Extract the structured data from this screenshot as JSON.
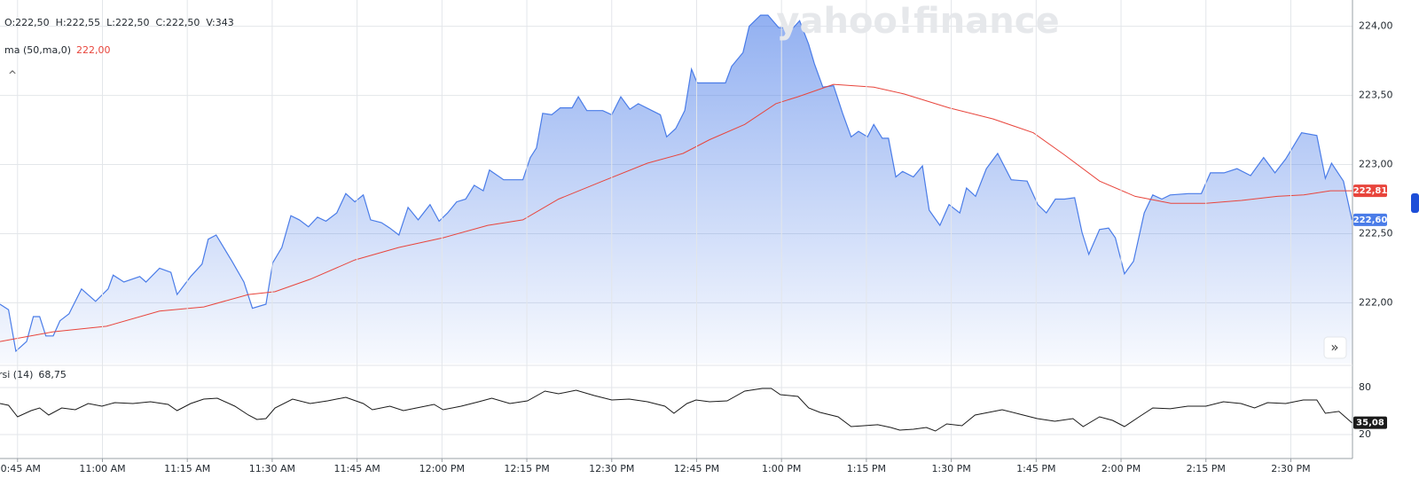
{
  "chart_data": [
    {
      "type": "area",
      "ohlcv": [
        "O:222,50",
        "H:222,55",
        "L:222,50",
        "C:222,50",
        "V:343"
      ],
      "watermark": "yahoo!finance",
      "xlim": [
        641.9,
        880.9
      ],
      "ylim": [
        221.56,
        224.19
      ],
      "yticks": [
        {
          "value": 222,
          "label": "222,00"
        },
        {
          "value": 222.5,
          "label": "222,50"
        },
        {
          "value": 223,
          "label": "223,00"
        },
        {
          "value": 223.5,
          "label": "223,50"
        },
        {
          "value": 224,
          "label": "224,00"
        }
      ],
      "grid": true,
      "series": [
        {
          "kind": "area",
          "color": "#4a7ce8",
          "x": [
            641.9,
            643.4,
            644.7,
            646.6,
            647.8,
            648.9,
            650.0,
            651.3,
            652.5,
            654.1,
            656.3,
            658.8,
            661.0,
            661.9,
            663.8,
            666.6,
            667.7,
            670.1,
            672.1,
            673.2,
            675.6,
            677.6,
            678.7,
            680.1,
            682.9,
            685.0,
            686.5,
            688.9,
            690.1,
            691.7,
            693.3,
            694.8,
            696.4,
            698.0,
            699.5,
            701.4,
            703.0,
            704.6,
            706.1,
            707.4,
            709.3,
            710.8,
            712.4,
            714.0,
            715.8,
            717.9,
            719.5,
            721.0,
            722.6,
            724.2,
            725.7,
            727.3,
            728.4,
            730.9,
            734.3,
            735.6,
            736.7,
            737.8,
            739.4,
            740.9,
            743.0,
            744.1,
            745.6,
            748.4,
            750.0,
            751.6,
            753.2,
            754.7,
            757.1,
            758.6,
            759.7,
            761.3,
            762.9,
            764.1,
            765.1,
            767.3,
            770.1,
            771.2,
            773.2,
            774.3,
            776.3,
            777.6,
            779.5,
            782.1,
            783.2,
            784.8,
            785.8,
            787.3,
            789.2,
            790.8,
            792.3,
            793.6,
            795.2,
            796.3,
            797.8,
            798.9,
            800.2,
            801.4,
            803.3,
            804.9,
            806.1,
            808.0,
            809.6,
            811.5,
            812.7,
            814.3,
            816.2,
            818.2,
            820.6,
            823.4,
            825.3,
            826.8,
            828.4,
            830.0,
            831.8,
            833.1,
            834.3,
            836.2,
            837.8,
            839.0,
            840.6,
            842.2,
            844.1,
            845.6,
            847.2,
            848.7,
            851.9,
            854.2,
            855.8,
            858.2,
            860.5,
            862.9,
            865.2,
            867.2,
            869.1,
            871.9,
            874.6,
            876.1,
            877.2,
            879.3,
            880.8
          ],
          "values": [
            221.99,
            221.95,
            221.65,
            221.72,
            221.9,
            221.9,
            221.76,
            221.76,
            221.87,
            221.92,
            222.1,
            222.01,
            222.1,
            222.2,
            222.15,
            222.19,
            222.15,
            222.25,
            222.22,
            222.06,
            222.19,
            222.28,
            222.46,
            222.49,
            222.3,
            222.15,
            221.96,
            221.99,
            222.29,
            222.4,
            222.63,
            222.6,
            222.55,
            222.62,
            222.59,
            222.65,
            222.79,
            222.73,
            222.78,
            222.6,
            222.58,
            222.54,
            222.49,
            222.69,
            222.6,
            222.71,
            222.59,
            222.65,
            222.73,
            222.75,
            222.85,
            222.81,
            222.96,
            222.89,
            222.89,
            223.05,
            223.12,
            223.37,
            223.36,
            223.41,
            223.41,
            223.49,
            223.39,
            223.39,
            223.36,
            223.49,
            223.4,
            223.44,
            223.39,
            223.36,
            223.2,
            223.26,
            223.39,
            223.69,
            223.59,
            223.59,
            223.59,
            223.71,
            223.81,
            224.0,
            224.08,
            224.08,
            223.99,
            223.99,
            224.04,
            223.87,
            223.73,
            223.56,
            223.57,
            223.37,
            223.2,
            223.24,
            223.2,
            223.29,
            223.19,
            223.19,
            222.91,
            222.95,
            222.91,
            222.99,
            222.67,
            222.56,
            222.71,
            222.65,
            222.83,
            222.77,
            222.97,
            223.08,
            222.89,
            222.88,
            222.71,
            222.65,
            222.75,
            222.75,
            222.76,
            222.51,
            222.35,
            222.53,
            222.54,
            222.47,
            222.21,
            222.3,
            222.65,
            222.78,
            222.75,
            222.78,
            222.79,
            222.79,
            222.94,
            222.94,
            222.97,
            222.92,
            223.05,
            222.94,
            223.04,
            223.23,
            223.21,
            222.9,
            223.01,
            222.88,
            222.6
          ],
          "last_label": {
            "value": 222.6,
            "label": "222,60"
          }
        },
        {
          "kind": "line",
          "name": "ma (50,ma,0)",
          "legend_value": "222,00",
          "color": "#e8453c",
          "x": [
            641.9,
            651.3,
            660.7,
            670.1,
            677.9,
            685.8,
            690.5,
            696.7,
            704.6,
            712.4,
            720.2,
            728.1,
            734.3,
            740.6,
            748.4,
            756.3,
            762.6,
            767.3,
            773.5,
            779.0,
            782.9,
            789.2,
            796.3,
            801.7,
            809.6,
            817.4,
            824.5,
            830.0,
            836.2,
            842.5,
            848.8,
            855.0,
            861.3,
            867.6,
            872.3,
            877.0,
            880.9
          ],
          "values": [
            221.72,
            221.79,
            221.83,
            221.94,
            221.97,
            222.06,
            222.08,
            222.17,
            222.31,
            222.4,
            222.47,
            222.56,
            222.6,
            222.75,
            222.88,
            223.01,
            223.08,
            223.18,
            223.29,
            223.44,
            223.49,
            223.58,
            223.56,
            223.51,
            223.41,
            223.33,
            223.23,
            223.07,
            222.88,
            222.77,
            222.72,
            222.72,
            222.74,
            222.77,
            222.78,
            222.81,
            222.81
          ],
          "last_label": {
            "value": 222.81,
            "label": "222,81"
          }
        }
      ]
    },
    {
      "type": "line",
      "xlim": [
        641.9,
        880.9
      ],
      "ylim": [
        -10.6,
        107.2
      ],
      "yticks": [
        20,
        80
      ],
      "xticks": [
        {
          "value": 645,
          "label": "10:45 AM"
        },
        {
          "value": 660,
          "label": "11:00 AM"
        },
        {
          "value": 675,
          "label": "11:15 AM"
        },
        {
          "value": 690,
          "label": "11:30 AM"
        },
        {
          "value": 705,
          "label": "11:45 AM"
        },
        {
          "value": 720,
          "label": "12:00 PM"
        },
        {
          "value": 735,
          "label": "12:15 PM"
        },
        {
          "value": 750,
          "label": "12:30 PM"
        },
        {
          "value": 765,
          "label": "12:45 PM"
        },
        {
          "value": 780,
          "label": "1:00 PM"
        },
        {
          "value": 795,
          "label": "1:15 PM"
        },
        {
          "value": 810,
          "label": "1:30 PM"
        },
        {
          "value": 825,
          "label": "1:45 PM"
        },
        {
          "value": 840,
          "label": "2:00 PM"
        },
        {
          "value": 855,
          "label": "2:15 PM"
        },
        {
          "value": 870,
          "label": "2:30 PM"
        }
      ],
      "grid": true,
      "series": [
        {
          "name": "rsi (14)",
          "legend_value": "68,75",
          "color": "#1a1a1a",
          "x": [
            641.9,
            643.4,
            645.0,
            647.4,
            648.9,
            650.5,
            652.8,
            655.2,
            657.5,
            659.9,
            662.2,
            665.4,
            668.5,
            671.6,
            673.2,
            675.6,
            677.9,
            680.3,
            683.4,
            685.8,
            687.3,
            688.9,
            690.5,
            693.6,
            696.7,
            699.8,
            703.0,
            706.1,
            707.7,
            710.8,
            713.2,
            715.5,
            718.6,
            720.2,
            723.4,
            726.5,
            728.8,
            732.0,
            735.1,
            738.2,
            740.6,
            743.7,
            746.9,
            750.0,
            753.1,
            756.3,
            759.4,
            761.0,
            763.3,
            764.9,
            767.3,
            770.4,
            773.5,
            776.6,
            778.2,
            779.8,
            782.9,
            784.8,
            786.8,
            790.0,
            792.3,
            794.6,
            797.0,
            799.3,
            800.9,
            803.3,
            805.6,
            807.2,
            809.2,
            811.9,
            814.2,
            816.6,
            819.0,
            822.1,
            825.2,
            828.3,
            831.5,
            833.3,
            836.2,
            838.5,
            840.6,
            843.2,
            845.6,
            848.7,
            851.8,
            855.0,
            858.1,
            861.2,
            863.6,
            865.9,
            869.1,
            872.2,
            874.6,
            876.1,
            878.5,
            880.8
          ],
          "values": [
            59.6,
            57.4,
            42.6,
            50.6,
            54.0,
            44.9,
            54.0,
            51.7,
            59.6,
            56.2,
            60.8,
            59.6,
            61.9,
            58.5,
            50.6,
            59.6,
            65.3,
            66.4,
            56.2,
            44.9,
            39.2,
            40.4,
            54.0,
            65.3,
            59.6,
            63.0,
            67.5,
            59.6,
            51.7,
            56.2,
            50.6,
            54.0,
            58.5,
            51.7,
            56.2,
            61.9,
            66.4,
            59.6,
            63.0,
            75.5,
            72.1,
            76.6,
            69.8,
            64.2,
            65.3,
            61.9,
            56.2,
            47.2,
            59.6,
            64.2,
            61.9,
            63.0,
            75.5,
            78.9,
            78.9,
            70.9,
            68.7,
            54.0,
            48.3,
            42.6,
            30.2,
            31.3,
            32.5,
            29.0,
            25.7,
            26.8,
            29.0,
            24.5,
            33.6,
            31.3,
            44.9,
            48.3,
            51.7,
            46.0,
            40.4,
            37.0,
            40.4,
            30.2,
            42.6,
            38.1,
            30.2,
            42.6,
            54.0,
            52.9,
            56.2,
            56.2,
            61.9,
            59.6,
            54.0,
            60.8,
            59.6,
            64.2,
            64.2,
            47.2,
            49.5,
            35.08
          ],
          "last_label": {
            "value": 35.08,
            "label": "35,08"
          }
        }
      ]
    }
  ]
}
